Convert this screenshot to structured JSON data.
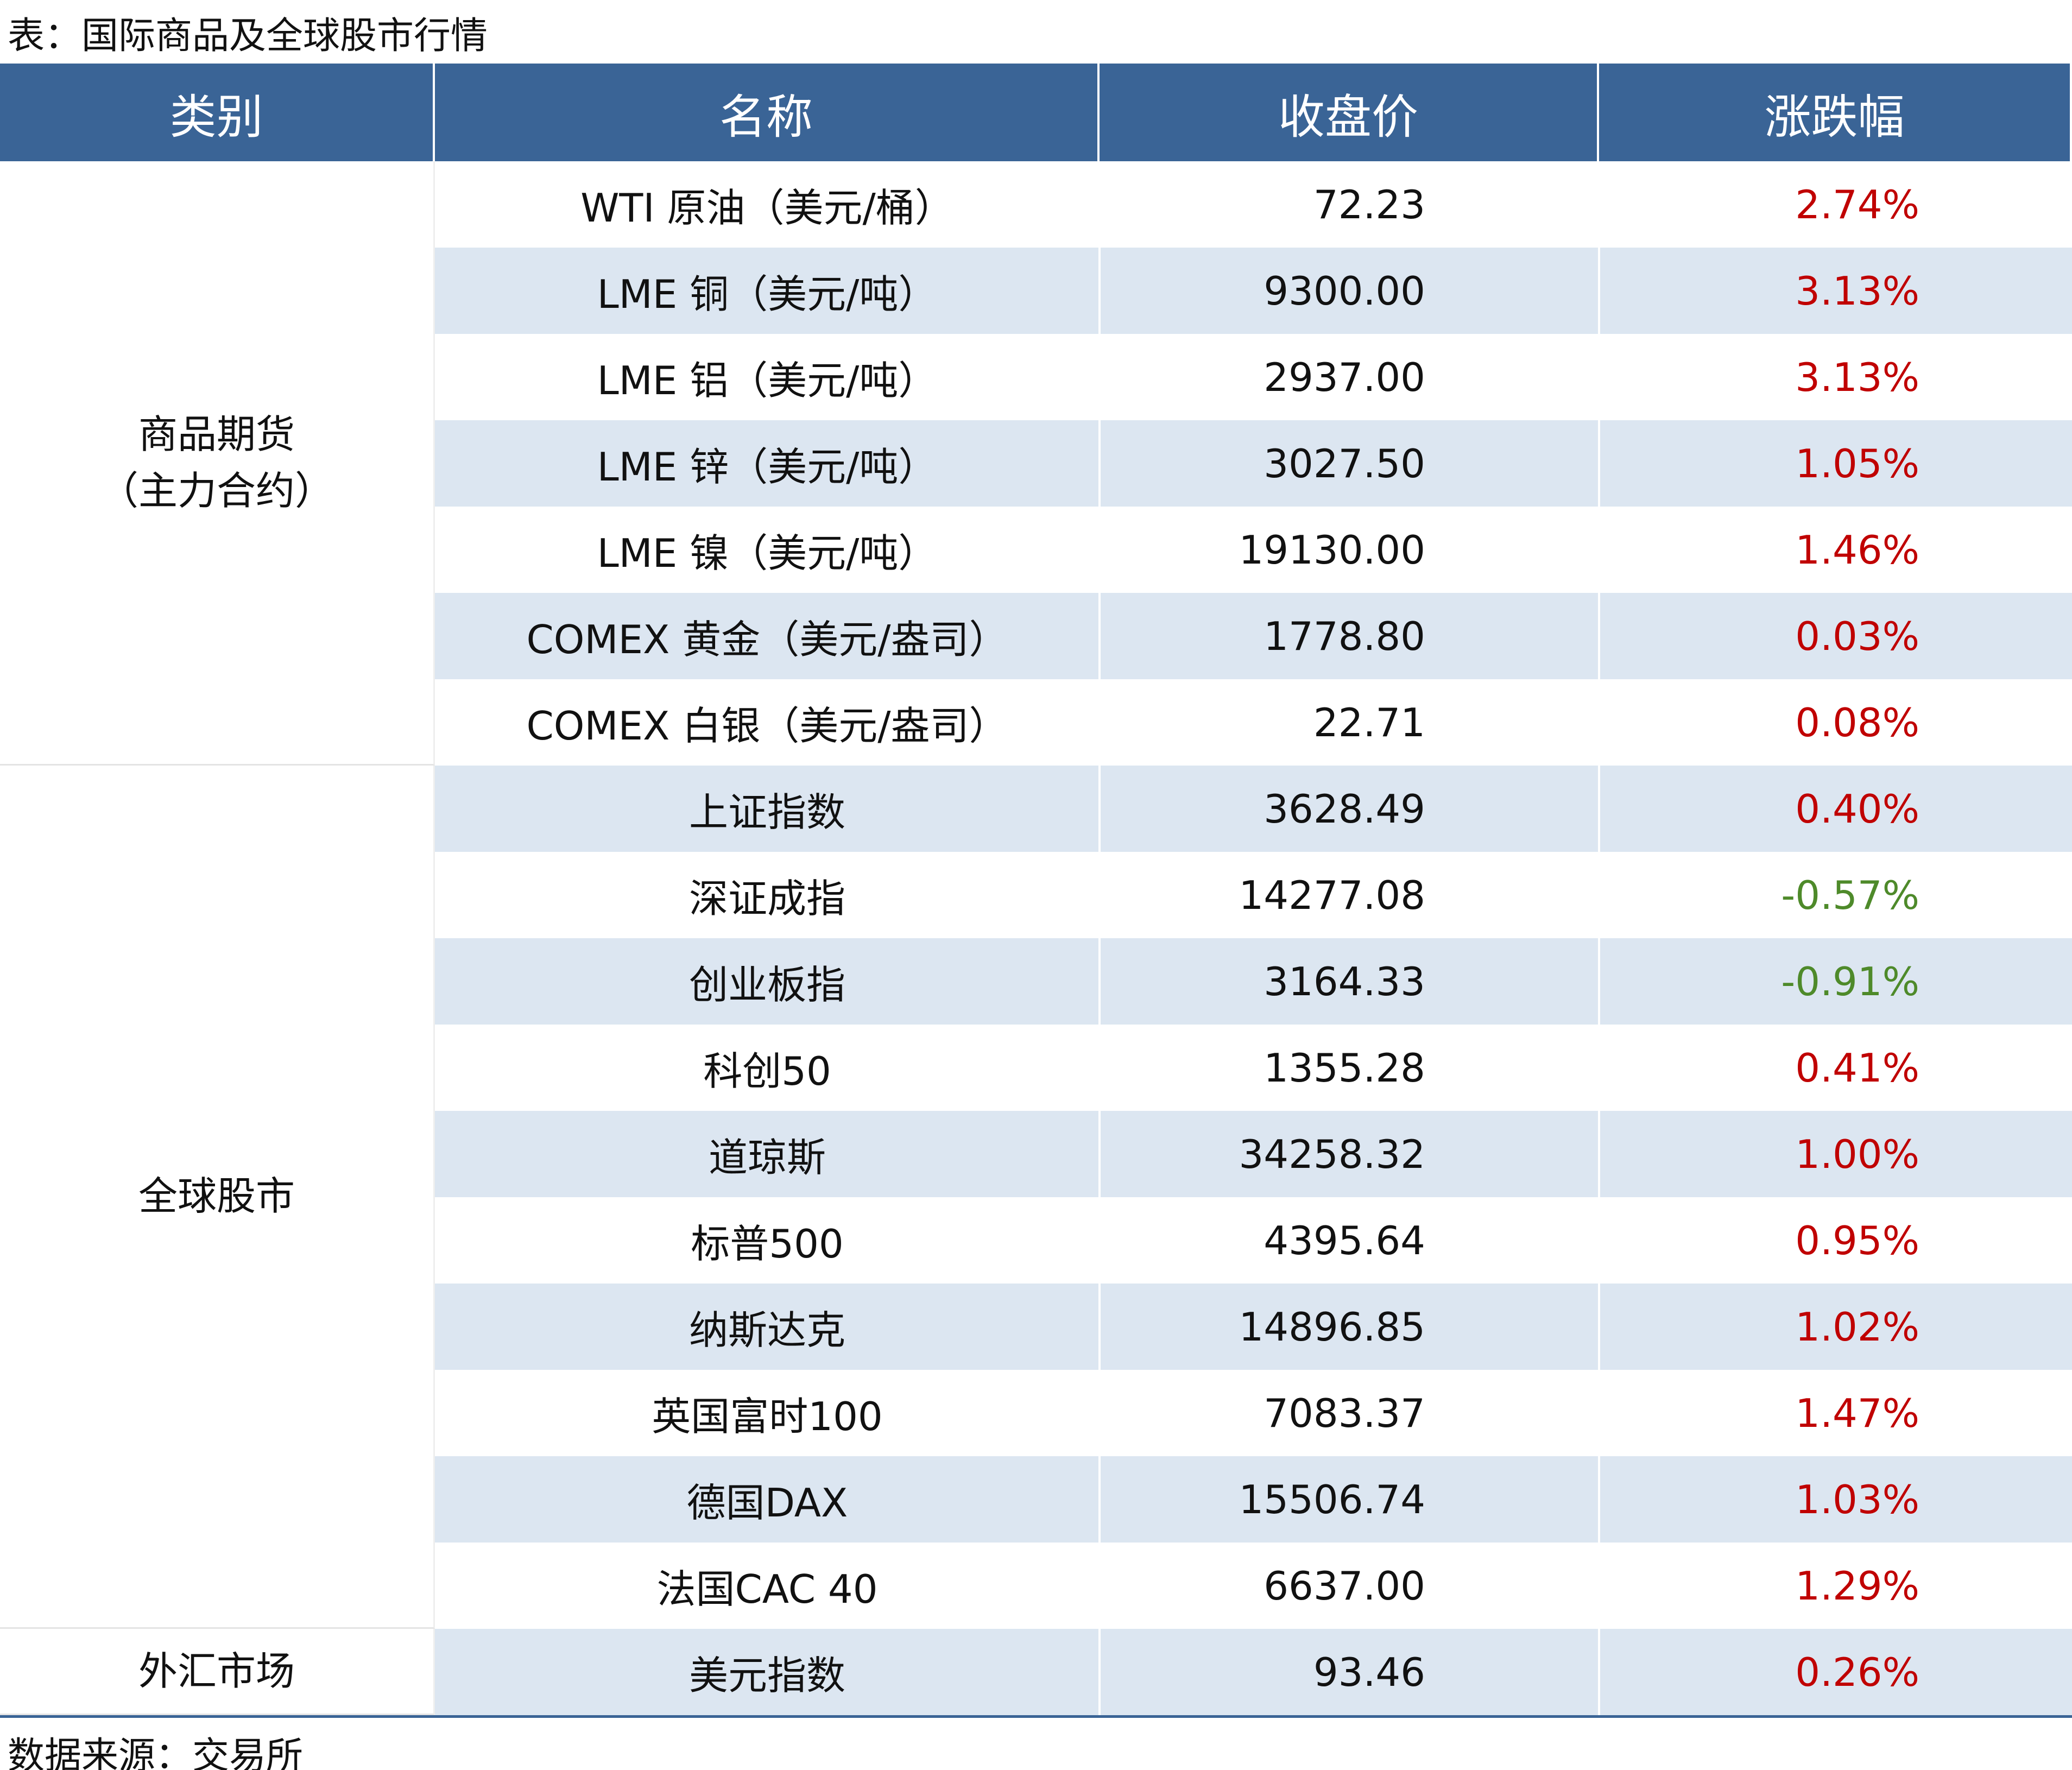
{
  "title": "表：国际商品及全球股市行情",
  "table": {
    "header": [
      "类别",
      "名称",
      "收盘价",
      "涨跌幅"
    ],
    "groups": [
      {
        "label": [
          "商品期货",
          "（主力合约）"
        ],
        "rows": [
          [
            "WTI 原油（美元/桶）",
            "72.23",
            "2.74%"
          ],
          [
            "LME 铜（美元/吨）",
            "9300.00",
            "3.13%"
          ],
          [
            "LME 铝（美元/吨）",
            "2937.00",
            "3.13%"
          ],
          [
            "LME 锌（美元/吨）",
            "3027.50",
            "1.05%"
          ],
          [
            "LME 镍（美元/吨）",
            "19130.00",
            "1.46%"
          ],
          [
            "COMEX 黄金（美元/盎司）",
            "1778.80",
            "0.03%"
          ],
          [
            "COMEX 白银（美元/盎司）",
            "22.71",
            "0.08%"
          ]
        ]
      },
      {
        "label": [
          "全球股市"
        ],
        "rows": [
          [
            "上证指数",
            "3628.49",
            "0.40%"
          ],
          [
            "深证成指",
            "14277.08",
            "-0.57%"
          ],
          [
            "创业板指",
            "3164.33",
            "-0.91%"
          ],
          [
            "科创50",
            "1355.28",
            "0.41%"
          ],
          [
            "道琼斯",
            "34258.32",
            "1.00%"
          ],
          [
            "标普500",
            "4395.64",
            "0.95%"
          ],
          [
            "纳斯达克",
            "14896.85",
            "1.02%"
          ],
          [
            "英国富时100",
            "7083.37",
            "1.47%"
          ],
          [
            "德国DAX",
            "15506.74",
            "1.03%"
          ],
          [
            "法国CAC 40",
            "6637.00",
            "1.29%"
          ]
        ]
      },
      {
        "label": [
          "外汇市场"
        ],
        "rows": [
          [
            "美元指数",
            "93.46",
            "0.26%"
          ]
        ]
      }
    ]
  },
  "source": "数据来源：交易所"
}
